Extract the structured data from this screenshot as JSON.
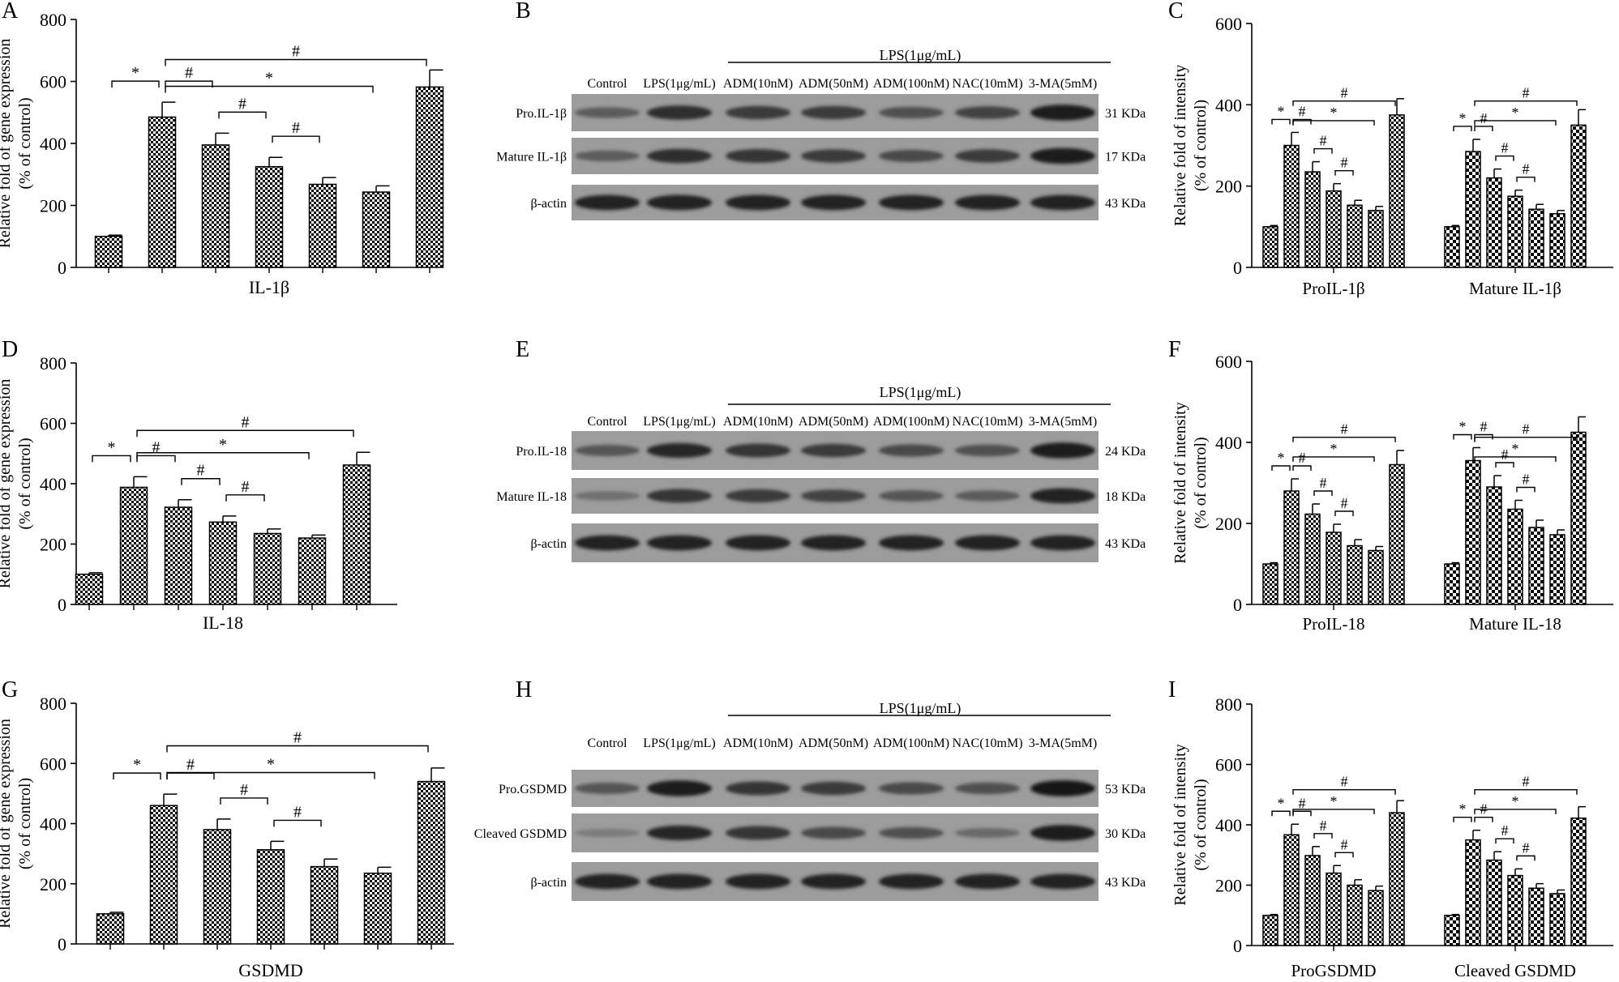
{
  "palette": {
    "axis": "#000000",
    "bar_fill": "#ffffff",
    "pattern_ink": "#000000",
    "blot_background": "#9c9c9c",
    "band_ink": "#1a1a1a"
  },
  "blot_lanes": [
    "Control",
    "LPS(1μg/mL)",
    "ADM(10nM)",
    "ADM(50nM)",
    "ADM(100nM)",
    "NAC(10mM)",
    "3-MA(5mM)"
  ],
  "blot_treatment_header": "LPS(1μg/mL)",
  "blots": [
    {
      "panel": "B",
      "rows": [
        {
          "name": "Pro.IL-1β",
          "kda": "31 KDa",
          "intensity": [
            0.45,
            0.8,
            0.7,
            0.7,
            0.55,
            0.65,
            0.95
          ]
        },
        {
          "name": "Mature IL-1β",
          "kda": "17 KDa",
          "intensity": [
            0.45,
            0.8,
            0.75,
            0.7,
            0.6,
            0.7,
            0.95
          ]
        },
        {
          "name": "β-actin",
          "kda": "43 KDa",
          "intensity": [
            0.9,
            0.9,
            0.9,
            0.9,
            0.9,
            0.9,
            0.9
          ]
        }
      ]
    },
    {
      "panel": "E",
      "rows": [
        {
          "name": "Pro.IL-18",
          "kda": "24 KDa",
          "intensity": [
            0.5,
            0.85,
            0.75,
            0.7,
            0.6,
            0.55,
            0.95
          ]
        },
        {
          "name": "Mature IL-18",
          "kda": "18 KDa",
          "intensity": [
            0.3,
            0.75,
            0.7,
            0.65,
            0.5,
            0.45,
            0.9
          ]
        },
        {
          "name": "β-actin",
          "kda": "43 KDa",
          "intensity": [
            0.9,
            0.9,
            0.9,
            0.9,
            0.9,
            0.9,
            0.9
          ]
        }
      ]
    },
    {
      "panel": "H",
      "rows": [
        {
          "name": "Pro.GSDMD",
          "kda": "53 KDa",
          "intensity": [
            0.5,
            0.95,
            0.75,
            0.7,
            0.6,
            0.55,
            0.98
          ]
        },
        {
          "name": "Cleaved GSDMD",
          "kda": "30 KDa",
          "intensity": [
            0.2,
            0.85,
            0.75,
            0.6,
            0.55,
            0.35,
            0.95
          ]
        },
        {
          "name": "β-actin",
          "kda": "43 KDa",
          "intensity": [
            0.9,
            0.9,
            0.9,
            0.9,
            0.9,
            0.9,
            0.9
          ]
        }
      ]
    }
  ],
  "chart_data": [
    {
      "panel": "A",
      "type": "bar",
      "ylabel": [
        "Relative fold of gene expression",
        "(% of control)"
      ],
      "xlabel": "IL-1β",
      "ylim": [
        0,
        800
      ],
      "yticks": [
        0,
        200,
        400,
        600,
        800
      ],
      "values": [
        100,
        485,
        395,
        325,
        268,
        243,
        582
      ],
      "errors": [
        4,
        48,
        38,
        30,
        22,
        20,
        55
      ],
      "brackets": [
        {
          "from": 0,
          "to": 1,
          "label": "*"
        },
        {
          "from": 1,
          "to": 2,
          "label": "#"
        },
        {
          "from": 2,
          "to": 3,
          "label": "#"
        },
        {
          "from": 3,
          "to": 4,
          "label": "#"
        },
        {
          "from": 1,
          "to": 5,
          "label": "*"
        },
        {
          "from": 1,
          "to": 6,
          "label": "#"
        }
      ]
    },
    {
      "panel": "C",
      "type": "bar",
      "ylabel": [
        "Relative fold of intensity",
        "(% of control)"
      ],
      "groups": [
        "ProIL-1β",
        "Mature IL-1β"
      ],
      "ylim": [
        0,
        600
      ],
      "yticks": [
        0,
        200,
        400,
        600
      ],
      "series": [
        {
          "group": "ProIL-1β",
          "values": [
            100,
            300,
            235,
            188,
            153,
            140,
            375
          ],
          "errors": [
            3,
            32,
            25,
            18,
            12,
            10,
            40
          ]
        },
        {
          "group": "Mature IL-1β",
          "values": [
            100,
            285,
            220,
            175,
            143,
            132,
            350
          ],
          "errors": [
            3,
            30,
            22,
            15,
            12,
            8,
            38
          ]
        }
      ],
      "brackets": [
        {
          "from": 0,
          "to": 1,
          "label": "*"
        },
        {
          "from": 1,
          "to": 2,
          "label": "#"
        },
        {
          "from": 2,
          "to": 3,
          "label": "#"
        },
        {
          "from": 3,
          "to": 4,
          "label": "#"
        },
        {
          "from": 1,
          "to": 5,
          "label": "*"
        },
        {
          "from": 1,
          "to": 6,
          "label": "#"
        }
      ]
    },
    {
      "panel": "D",
      "type": "bar",
      "ylabel": [
        "Relative fold of gene expression",
        "(% of control)"
      ],
      "xlabel": "IL-18",
      "ylim": [
        0,
        800
      ],
      "yticks": [
        0,
        200,
        400,
        600,
        800
      ],
      "values": [
        100,
        388,
        322,
        273,
        235,
        220,
        462
      ],
      "errors": [
        5,
        35,
        25,
        20,
        15,
        10,
        42
      ],
      "brackets": [
        {
          "from": 0,
          "to": 1,
          "label": "*"
        },
        {
          "from": 1,
          "to": 2,
          "label": "#"
        },
        {
          "from": 2,
          "to": 3,
          "label": "#"
        },
        {
          "from": 3,
          "to": 4,
          "label": "#"
        },
        {
          "from": 1,
          "to": 5,
          "label": "*"
        },
        {
          "from": 1,
          "to": 6,
          "label": "#"
        }
      ]
    },
    {
      "panel": "F",
      "type": "bar",
      "ylabel": [
        "Relative fold of intensity",
        "(% of control)"
      ],
      "groups": [
        "ProIL-18",
        "Mature IL-18"
      ],
      "ylim": [
        0,
        600
      ],
      "yticks": [
        0,
        200,
        400,
        600
      ],
      "series": [
        {
          "group": "ProIL-18",
          "values": [
            100,
            280,
            223,
            178,
            145,
            133,
            345
          ],
          "errors": [
            3,
            30,
            25,
            20,
            15,
            10,
            35
          ]
        },
        {
          "group": "Mature IL-18",
          "values": [
            100,
            355,
            290,
            235,
            190,
            172,
            425
          ],
          "errors": [
            3,
            32,
            28,
            22,
            18,
            12,
            38
          ]
        }
      ],
      "brackets": [
        {
          "from": 0,
          "to": 1,
          "label": "*"
        },
        {
          "from": 1,
          "to": 2,
          "label": "#"
        },
        {
          "from": 2,
          "to": 3,
          "label": "#"
        },
        {
          "from": 3,
          "to": 4,
          "label": "#"
        },
        {
          "from": 1,
          "to": 5,
          "label": "*"
        },
        {
          "from": 1,
          "to": 6,
          "label": "#"
        }
      ]
    },
    {
      "panel": "G",
      "type": "bar",
      "ylabel": [
        "Relative fold of gene expression",
        "(% of control)"
      ],
      "xlabel": "GSDMD",
      "ylim": [
        0,
        800
      ],
      "yticks": [
        0,
        200,
        400,
        600,
        800
      ],
      "values": [
        100,
        460,
        380,
        313,
        257,
        235,
        540
      ],
      "errors": [
        5,
        38,
        35,
        28,
        25,
        20,
        45
      ],
      "brackets": [
        {
          "from": 0,
          "to": 1,
          "label": "*"
        },
        {
          "from": 1,
          "to": 2,
          "label": "#"
        },
        {
          "from": 2,
          "to": 3,
          "label": "#"
        },
        {
          "from": 3,
          "to": 4,
          "label": "#"
        },
        {
          "from": 1,
          "to": 5,
          "label": "*"
        },
        {
          "from": 1,
          "to": 6,
          "label": "#"
        }
      ]
    },
    {
      "panel": "I",
      "type": "bar",
      "ylabel": [
        "Relative fold of intensity",
        "(% of control)"
      ],
      "groups": [
        "ProGSDMD",
        "Cleaved GSDMD"
      ],
      "ylim": [
        0,
        800
      ],
      "yticks": [
        0,
        200,
        400,
        600,
        800
      ],
      "series": [
        {
          "group": "ProGSDMD",
          "values": [
            100,
            367,
            298,
            240,
            200,
            182,
            440
          ],
          "errors": [
            3,
            35,
            30,
            25,
            18,
            15,
            40
          ]
        },
        {
          "group": "Cleaved GSDMD",
          "values": [
            100,
            350,
            283,
            232,
            190,
            172,
            422
          ],
          "errors": [
            3,
            32,
            28,
            22,
            15,
            12,
            38
          ]
        }
      ],
      "brackets": [
        {
          "from": 0,
          "to": 1,
          "label": "*"
        },
        {
          "from": 1,
          "to": 2,
          "label": "#"
        },
        {
          "from": 2,
          "to": 3,
          "label": "#"
        },
        {
          "from": 3,
          "to": 4,
          "label": "#"
        },
        {
          "from": 1,
          "to": 5,
          "label": "*"
        },
        {
          "from": 1,
          "to": 6,
          "label": "#"
        }
      ]
    }
  ]
}
